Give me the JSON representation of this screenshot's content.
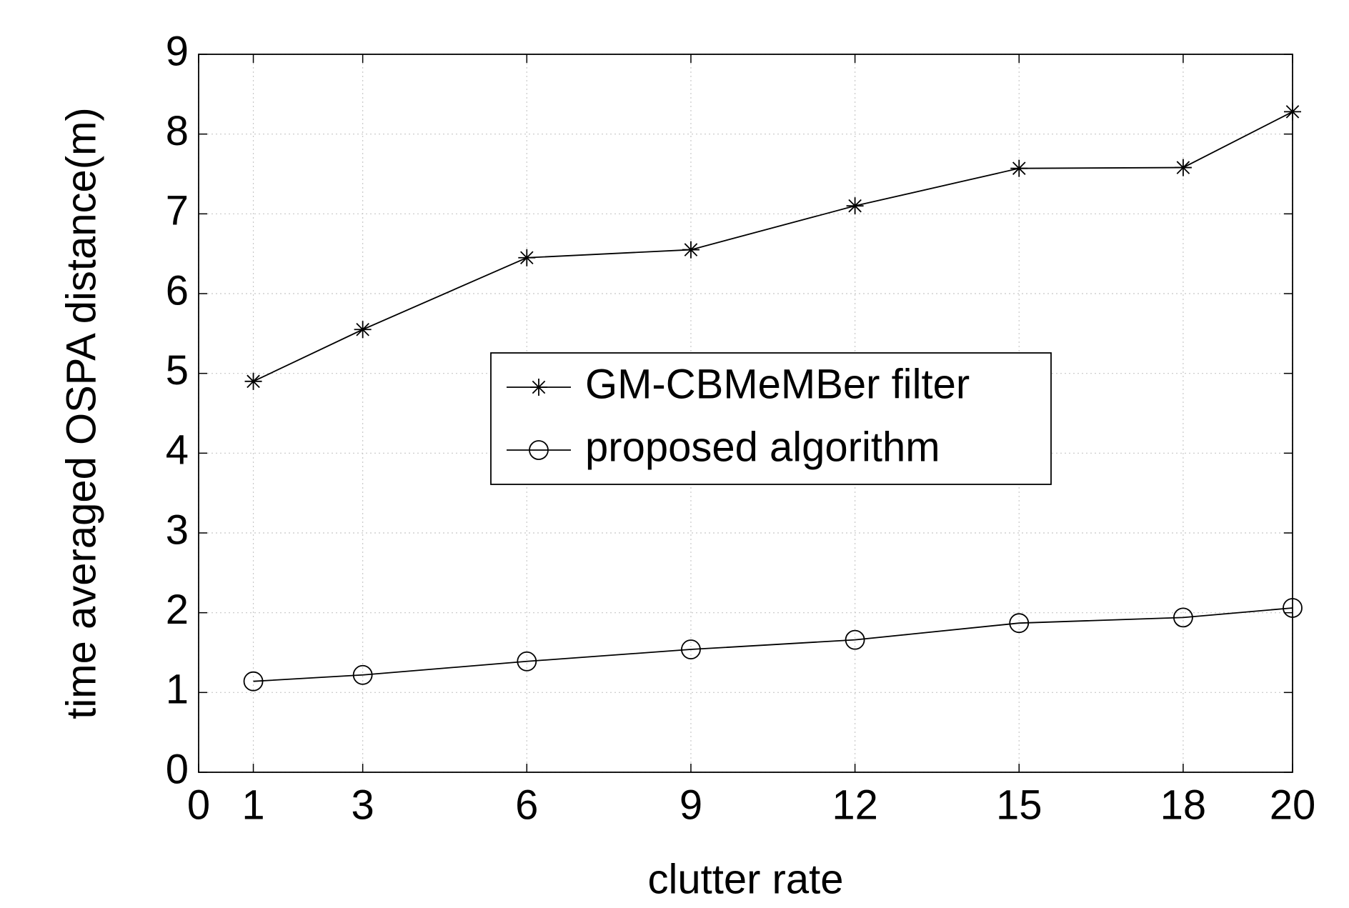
{
  "chart_data": {
    "type": "line",
    "x_label": "clutter rate",
    "y_label": "time averaged OSPA distance(m)",
    "x": [
      1,
      3,
      6,
      9,
      12,
      15,
      18,
      20
    ],
    "series": [
      {
        "name": "GM-CBMeMBer filter",
        "color": "#000000",
        "marker": "star",
        "values": [
          4.9,
          5.55,
          6.45,
          6.55,
          7.1,
          7.57,
          7.58,
          8.28
        ]
      },
      {
        "name": "proposed algorithm",
        "color": "#000000",
        "marker": "circle",
        "values": [
          1.14,
          1.22,
          1.39,
          1.54,
          1.66,
          1.87,
          1.94,
          2.06
        ]
      }
    ],
    "xlim": [
      0,
      20
    ],
    "xticks": [
      0,
      1,
      3,
      6,
      9,
      12,
      15,
      18,
      20
    ],
    "ylim": [
      0,
      9
    ],
    "yticks": [
      0,
      1,
      2,
      3,
      4,
      5,
      6,
      7,
      8,
      9
    ],
    "grid": true,
    "legend": "center"
  }
}
